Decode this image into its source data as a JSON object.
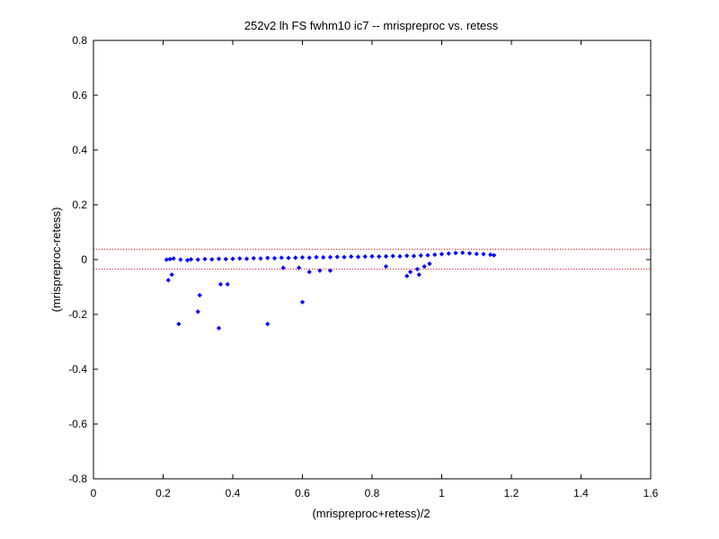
{
  "chart_data": {
    "type": "scatter",
    "title": "252v2 lh FS fwhm10 ic7 -- mrispreproc vs. retess",
    "xlabel": "(mrispreproc+retess)/2",
    "ylabel": "(mrispreproc-retess)",
    "xlim": [
      0,
      1.6
    ],
    "ylim": [
      -0.8,
      0.8
    ],
    "xticks": [
      0,
      0.2,
      0.4,
      0.6,
      0.8,
      1,
      1.2,
      1.4,
      1.6
    ],
    "xtick_labels": [
      "0",
      "0.2",
      "0.4",
      "0.6",
      "0.8",
      "1",
      "1.2",
      "1.4",
      "1.6"
    ],
    "yticks": [
      -0.8,
      -0.6,
      -0.4,
      -0.2,
      0,
      0.2,
      0.4,
      0.6,
      0.8
    ],
    "ytick_labels": [
      "-0.8",
      "-0.6",
      "-0.4",
      "-0.2",
      "0",
      "0.2",
      "0.4",
      "0.6",
      "0.8"
    ],
    "grid": false,
    "marker_color": "#0000ff",
    "reference_line_color": "#ff0000",
    "reference_lines_y": [
      0.038,
      -0.035
    ],
    "points": [
      [
        0.21,
        0.0
      ],
      [
        0.22,
        0.002
      ],
      [
        0.23,
        0.004
      ],
      [
        0.25,
        0.0
      ],
      [
        0.27,
        -0.002
      ],
      [
        0.28,
        0.001
      ],
      [
        0.3,
        0.0
      ],
      [
        0.32,
        0.002
      ],
      [
        0.34,
        0.001
      ],
      [
        0.36,
        0.003
      ],
      [
        0.38,
        0.002
      ],
      [
        0.4,
        0.003
      ],
      [
        0.42,
        0.004
      ],
      [
        0.44,
        0.003
      ],
      [
        0.46,
        0.005
      ],
      [
        0.48,
        0.004
      ],
      [
        0.5,
        0.006
      ],
      [
        0.52,
        0.005
      ],
      [
        0.54,
        0.007
      ],
      [
        0.56,
        0.006
      ],
      [
        0.58,
        0.007
      ],
      [
        0.6,
        0.008
      ],
      [
        0.62,
        0.007
      ],
      [
        0.64,
        0.009
      ],
      [
        0.66,
        0.008
      ],
      [
        0.68,
        0.009
      ],
      [
        0.7,
        0.01
      ],
      [
        0.72,
        0.009
      ],
      [
        0.74,
        0.011
      ],
      [
        0.76,
        0.01
      ],
      [
        0.78,
        0.011
      ],
      [
        0.8,
        0.012
      ],
      [
        0.82,
        0.011
      ],
      [
        0.84,
        0.012
      ],
      [
        0.86,
        0.013
      ],
      [
        0.88,
        0.012
      ],
      [
        0.9,
        0.014
      ],
      [
        0.92,
        0.013
      ],
      [
        0.94,
        0.015
      ],
      [
        0.96,
        0.016
      ],
      [
        0.98,
        0.018
      ],
      [
        1.0,
        0.02
      ],
      [
        1.02,
        0.022
      ],
      [
        1.04,
        0.024
      ],
      [
        1.06,
        0.025
      ],
      [
        1.08,
        0.023
      ],
      [
        1.1,
        0.021
      ],
      [
        1.12,
        0.02
      ],
      [
        1.14,
        0.018
      ],
      [
        1.15,
        0.016
      ],
      [
        0.215,
        -0.075
      ],
      [
        0.225,
        -0.055
      ],
      [
        0.245,
        -0.235
      ],
      [
        0.3,
        -0.19
      ],
      [
        0.305,
        -0.13
      ],
      [
        0.36,
        -0.25
      ],
      [
        0.365,
        -0.09
      ],
      [
        0.385,
        -0.09
      ],
      [
        0.5,
        -0.235
      ],
      [
        0.6,
        -0.155
      ],
      [
        0.59,
        -0.03
      ],
      [
        0.62,
        -0.045
      ],
      [
        0.65,
        -0.04
      ],
      [
        0.68,
        -0.04
      ],
      [
        0.545,
        -0.03
      ],
      [
        0.84,
        -0.025
      ],
      [
        0.9,
        -0.06
      ],
      [
        0.91,
        -0.045
      ],
      [
        0.93,
        -0.035
      ],
      [
        0.935,
        -0.055
      ],
      [
        0.95,
        -0.025
      ],
      [
        0.965,
        -0.015
      ]
    ]
  }
}
